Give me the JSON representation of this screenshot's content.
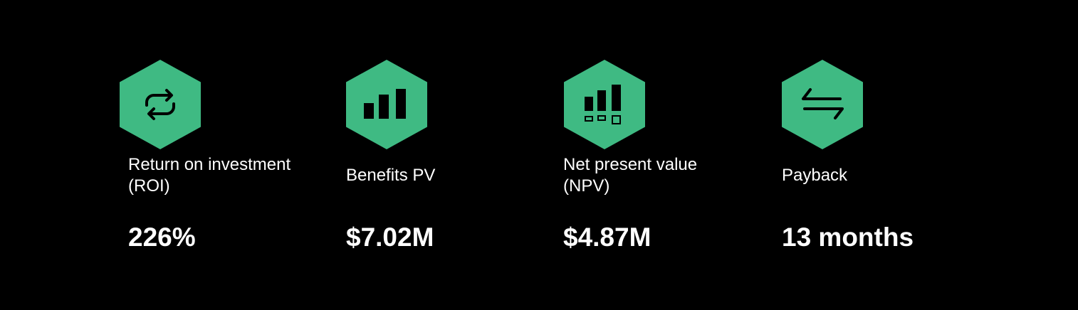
{
  "metrics": [
    {
      "label_lines": [
        "Return on investment",
        "(ROI)"
      ],
      "value": "226%"
    },
    {
      "label_lines": [
        "Benefits PV"
      ],
      "value": "$7.02M"
    },
    {
      "label_lines": [
        "Net present value",
        "(NPV)"
      ],
      "value": "$4.87M"
    },
    {
      "label_lines": [
        "Payback"
      ],
      "value": "13 months"
    }
  ]
}
